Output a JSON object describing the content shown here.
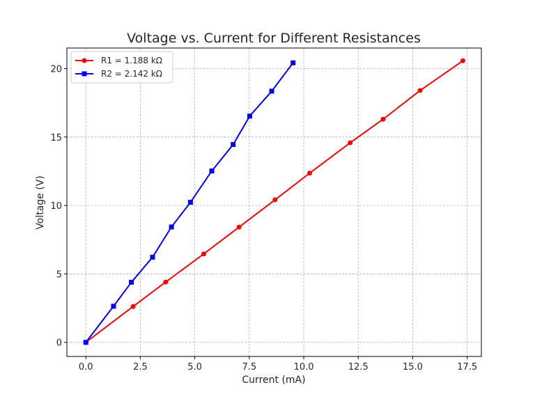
{
  "chart_data": {
    "type": "line",
    "title": "Voltage vs. Current for Different Resistances",
    "xlabel": "Current (mA)",
    "ylabel": "Voltage (V)",
    "xlim": [
      -0.87,
      18.15
    ],
    "ylim": [
      -1.03,
      21.5
    ],
    "xticks": [
      0.0,
      2.5,
      5.0,
      7.5,
      10.0,
      12.5,
      15.0,
      17.5
    ],
    "xtick_labels": [
      "0.0",
      "2.5",
      "5.0",
      "7.5",
      "10.0",
      "12.5",
      "15.0",
      "17.5"
    ],
    "yticks": [
      0,
      5,
      10,
      15,
      20
    ],
    "ytick_labels": [
      "0",
      "5",
      "10",
      "15",
      "20"
    ],
    "grid": true,
    "legend_position": "top-left",
    "series": [
      {
        "name": "R1 = 1.188 kΩ",
        "color": "#ff0000",
        "marker": "circle",
        "x": [
          0.0,
          2.17,
          3.66,
          5.41,
          7.03,
          8.68,
          10.27,
          12.13,
          13.64,
          15.34,
          17.3
        ],
        "y": [
          0.0,
          2.62,
          4.4,
          6.46,
          8.42,
          10.41,
          12.36,
          14.58,
          16.3,
          18.4,
          20.57
        ]
      },
      {
        "name": "R2 = 2.142 kΩ",
        "color": "#0000ff",
        "marker": "square",
        "x": [
          0.0,
          1.27,
          2.09,
          3.06,
          3.93,
          4.8,
          5.78,
          6.76,
          7.52,
          8.53,
          9.51
        ],
        "y": [
          0.0,
          2.64,
          4.39,
          6.22,
          8.43,
          10.23,
          12.52,
          14.45,
          16.53,
          18.35,
          20.42
        ]
      }
    ]
  }
}
